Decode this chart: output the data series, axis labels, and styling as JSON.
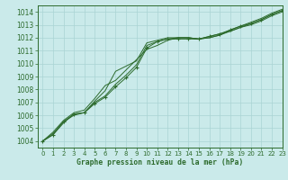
{
  "title": "Graphe pression niveau de la mer (hPa)",
  "bg_color": "#caeaea",
  "grid_color": "#aad4d4",
  "line_color": "#2d6b2d",
  "xlim": [
    -0.5,
    23
  ],
  "ylim": [
    1003.5,
    1014.5
  ],
  "yticks": [
    1004,
    1005,
    1006,
    1007,
    1008,
    1009,
    1010,
    1011,
    1012,
    1013,
    1014
  ],
  "xticks": [
    0,
    1,
    2,
    3,
    4,
    5,
    6,
    7,
    8,
    9,
    10,
    11,
    12,
    13,
    14,
    15,
    16,
    17,
    18,
    19,
    20,
    21,
    22,
    23
  ],
  "series": [
    {
      "x": [
        0,
        1,
        2,
        3,
        4,
        5,
        6,
        7,
        8,
        9,
        10,
        11,
        12,
        13,
        14,
        15,
        16,
        17,
        18,
        19,
        20,
        21,
        22,
        23
      ],
      "y": [
        1004.0,
        1004.5,
        1005.5,
        1006.1,
        1006.2,
        1006.9,
        1007.4,
        1008.2,
        1008.9,
        1009.7,
        1011.2,
        1011.7,
        1011.9,
        1011.9,
        1011.9,
        1011.9,
        1012.1,
        1012.3,
        1012.6,
        1012.9,
        1013.1,
        1013.4,
        1013.8,
        1014.1
      ],
      "marker": true
    },
    {
      "x": [
        0,
        1,
        2,
        3,
        4,
        5,
        6,
        7,
        8,
        9,
        10,
        11,
        12,
        13,
        14,
        15,
        16,
        17,
        18,
        19,
        20,
        21,
        22,
        23
      ],
      "y": [
        1004.0,
        1004.5,
        1005.4,
        1006.1,
        1006.2,
        1007.1,
        1007.9,
        1009.4,
        1009.8,
        1010.2,
        1011.6,
        1011.8,
        1012.0,
        1012.0,
        1012.0,
        1011.9,
        1012.1,
        1012.3,
        1012.5,
        1012.8,
        1013.1,
        1013.4,
        1013.8,
        1014.1
      ],
      "marker": false
    },
    {
      "x": [
        0,
        1,
        2,
        3,
        4,
        5,
        6,
        7,
        8,
        9,
        10,
        11,
        12,
        13,
        14,
        15,
        16,
        17,
        18,
        19,
        20,
        21,
        22,
        23
      ],
      "y": [
        1004.0,
        1004.6,
        1005.5,
        1006.0,
        1006.2,
        1007.0,
        1007.5,
        1008.4,
        1009.1,
        1009.9,
        1011.4,
        1011.7,
        1011.9,
        1012.0,
        1012.0,
        1011.9,
        1012.0,
        1012.2,
        1012.5,
        1012.8,
        1013.0,
        1013.3,
        1013.7,
        1014.0
      ],
      "marker": false
    },
    {
      "x": [
        0,
        1,
        2,
        3,
        4,
        5,
        6,
        7,
        8,
        9,
        10,
        11,
        12,
        13,
        14,
        15,
        16,
        17,
        18,
        19,
        20,
        21,
        22,
        23
      ],
      "y": [
        1004.0,
        1004.7,
        1005.6,
        1006.2,
        1006.4,
        1007.3,
        1008.3,
        1008.7,
        1009.5,
        1010.3,
        1011.1,
        1011.4,
        1011.8,
        1012.0,
        1012.0,
        1011.9,
        1012.0,
        1012.2,
        1012.6,
        1012.9,
        1013.2,
        1013.5,
        1013.9,
        1014.2
      ],
      "marker": false
    }
  ]
}
